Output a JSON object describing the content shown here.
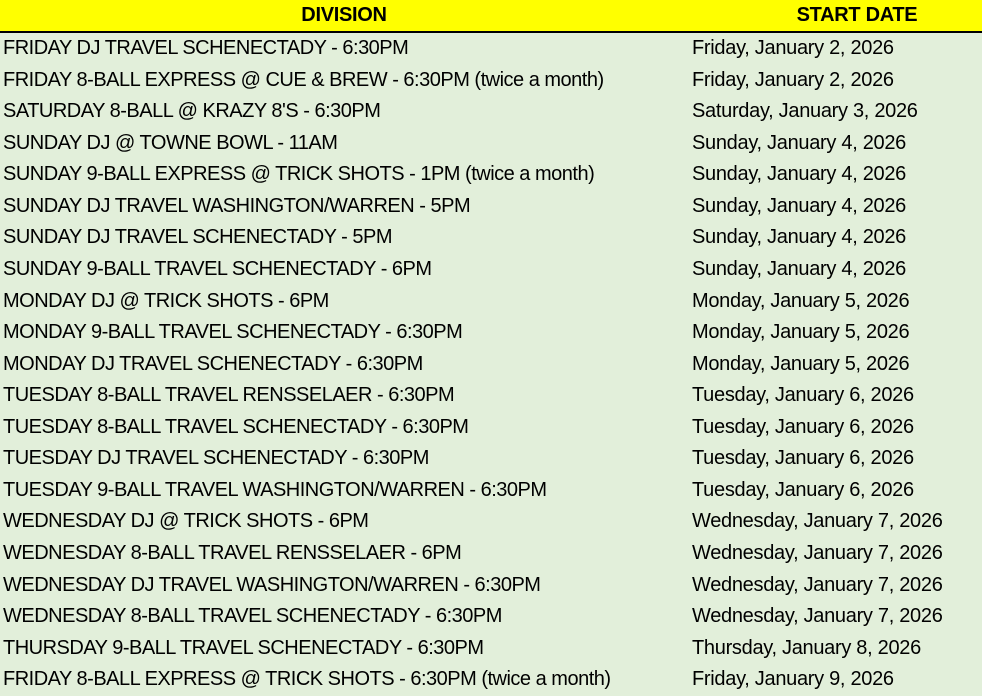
{
  "table": {
    "headers": [
      "DIVISION",
      "START DATE"
    ],
    "rows": [
      {
        "division": "FRIDAY DJ TRAVEL SCHENECTADY - 6:30PM",
        "start_date": "Friday, January 2, 2026"
      },
      {
        "division": "FRIDAY 8-BALL EXPRESS @ CUE & BREW - 6:30PM (twice a month)",
        "start_date": "Friday, January 2, 2026"
      },
      {
        "division": "SATURDAY 8-BALL @ KRAZY 8'S - 6:30PM",
        "start_date": "Saturday, January 3, 2026"
      },
      {
        "division": "SUNDAY DJ @ TOWNE BOWL - 11AM",
        "start_date": "Sunday, January 4, 2026"
      },
      {
        "division": "SUNDAY 9-BALL EXPRESS @ TRICK SHOTS - 1PM (twice a month)",
        "start_date": "Sunday, January 4, 2026"
      },
      {
        "division": "SUNDAY DJ TRAVEL WASHINGTON/WARREN - 5PM",
        "start_date": "Sunday, January 4, 2026"
      },
      {
        "division": "SUNDAY DJ TRAVEL SCHENECTADY - 5PM",
        "start_date": "Sunday, January 4, 2026"
      },
      {
        "division": "SUNDAY 9-BALL TRAVEL SCHENECTADY - 6PM",
        "start_date": "Sunday, January 4, 2026"
      },
      {
        "division": "MONDAY DJ @ TRICK SHOTS - 6PM",
        "start_date": "Monday, January 5, 2026"
      },
      {
        "division": "MONDAY 9-BALL TRAVEL SCHENECTADY - 6:30PM",
        "start_date": "Monday, January 5, 2026"
      },
      {
        "division": "MONDAY DJ TRAVEL SCHENECTADY - 6:30PM",
        "start_date": "Monday, January 5, 2026"
      },
      {
        "division": "TUESDAY 8-BALL TRAVEL RENSSELAER - 6:30PM",
        "start_date": "Tuesday, January 6, 2026"
      },
      {
        "division": "TUESDAY 8-BALL TRAVEL SCHENECTADY - 6:30PM",
        "start_date": "Tuesday, January 6, 2026"
      },
      {
        "division": "TUESDAY DJ TRAVEL SCHENECTADY - 6:30PM",
        "start_date": "Tuesday, January 6, 2026"
      },
      {
        "division": "TUESDAY 9-BALL TRAVEL WASHINGTON/WARREN - 6:30PM",
        "start_date": "Tuesday, January 6, 2026"
      },
      {
        "division": "WEDNESDAY DJ @ TRICK SHOTS - 6PM",
        "start_date": "Wednesday, January 7, 2026"
      },
      {
        "division": "WEDNESDAY 8-BALL TRAVEL RENSSELAER - 6PM",
        "start_date": "Wednesday, January 7, 2026"
      },
      {
        "division": "WEDNESDAY DJ TRAVEL WASHINGTON/WARREN - 6:30PM",
        "start_date": "Wednesday, January 7, 2026"
      },
      {
        "division": "WEDNESDAY 8-BALL TRAVEL SCHENECTADY - 6:30PM",
        "start_date": "Wednesday, January 7, 2026"
      },
      {
        "division": "THURSDAY 9-BALL TRAVEL SCHENECTADY - 6:30PM",
        "start_date": "Thursday, January 8, 2026"
      },
      {
        "division": "FRIDAY 8-BALL EXPRESS @ TRICK SHOTS - 6:30PM (twice a month)",
        "start_date": "Friday, January 9, 2026"
      }
    ],
    "colors": {
      "header_bg": "#FFFF00",
      "body_bg": "#E2EFDA",
      "text": "#000000",
      "header_bottom_border": "#000000"
    }
  }
}
